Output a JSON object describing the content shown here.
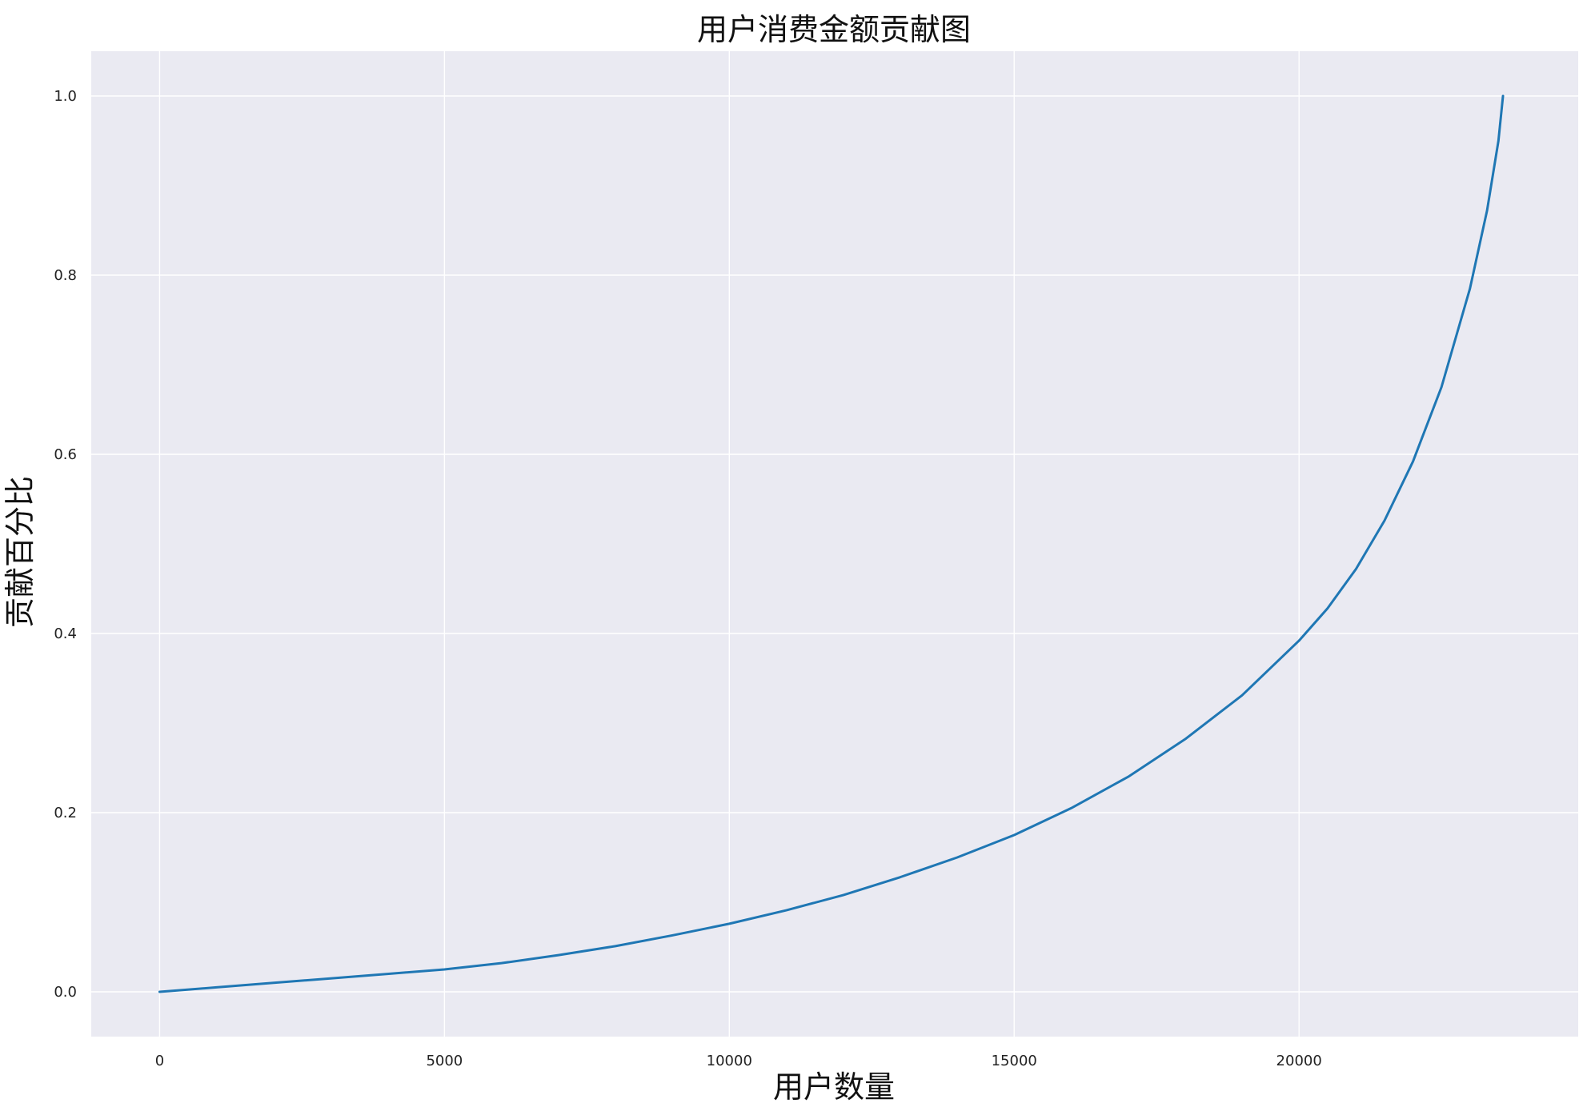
{
  "chart_data": {
    "type": "line",
    "title": "用户消费金额贡献图",
    "xlabel": "用户数量",
    "ylabel": "贡献百分比",
    "xlim": [
      -1200,
      24900
    ],
    "ylim": [
      -0.05,
      1.05
    ],
    "xticks": [
      0,
      5000,
      10000,
      15000,
      20000
    ],
    "yticks": [
      0.0,
      0.2,
      0.4,
      0.6,
      0.8,
      1.0
    ],
    "xtick_labels": [
      "0",
      "5000",
      "10000",
      "15000",
      "20000"
    ],
    "ytick_labels": [
      "0.0",
      "0.2",
      "0.4",
      "0.6",
      "0.8",
      "1.0"
    ],
    "grid": true,
    "background_color": "#EAEAF2",
    "grid_color": "#FFFFFF",
    "series": [
      {
        "color": "#1F77B4",
        "x": [
          0,
          1000,
          2000,
          3000,
          4000,
          5000,
          6000,
          7000,
          8000,
          9000,
          10000,
          11000,
          12000,
          13000,
          14000,
          15000,
          16000,
          17000,
          18000,
          19000,
          20000,
          20500,
          21000,
          21500,
          22000,
          22500,
          23000,
          23300,
          23500,
          23580
        ],
        "y": [
          0.0,
          0.005,
          0.01,
          0.015,
          0.02,
          0.025,
          0.032,
          0.041,
          0.051,
          0.063,
          0.076,
          0.091,
          0.108,
          0.128,
          0.15,
          0.175,
          0.205,
          0.24,
          0.282,
          0.331,
          0.392,
          0.428,
          0.472,
          0.526,
          0.592,
          0.675,
          0.785,
          0.872,
          0.95,
          1.0
        ]
      }
    ]
  }
}
